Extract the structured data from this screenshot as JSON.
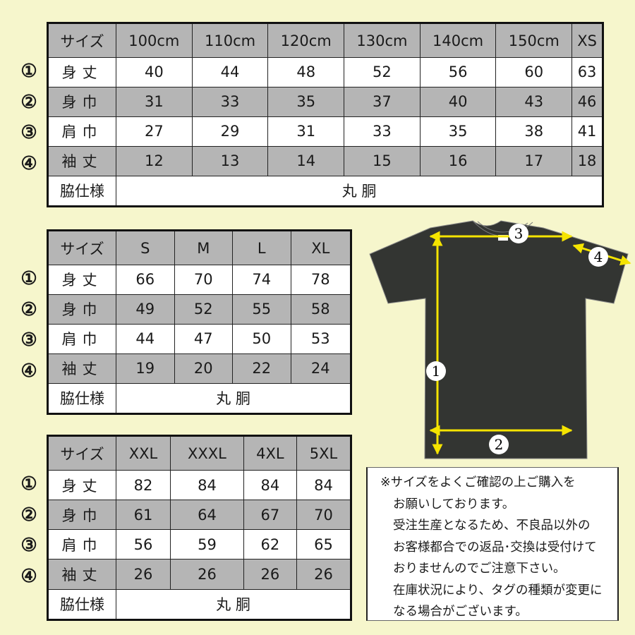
{
  "colors": {
    "background": "#f6f6cc",
    "row_gray": "#b5b5b5",
    "shirt": "#333532",
    "arrow": "#f5e400"
  },
  "tables": [
    {
      "id": "t1",
      "header": [
        "サイズ",
        "100cm",
        "110cm",
        "120cm",
        "130cm",
        "140cm",
        "150cm",
        "XS"
      ],
      "rows": [
        {
          "marker": "①",
          "label": "身丈",
          "values": [
            "40",
            "44",
            "48",
            "52",
            "56",
            "60",
            "63"
          ]
        },
        {
          "marker": "②",
          "label": "身巾",
          "values": [
            "31",
            "33",
            "35",
            "37",
            "40",
            "43",
            "46"
          ]
        },
        {
          "marker": "③",
          "label": "肩巾",
          "values": [
            "27",
            "29",
            "31",
            "33",
            "35",
            "38",
            "41"
          ]
        },
        {
          "marker": "④",
          "label": "袖丈",
          "values": [
            "12",
            "13",
            "14",
            "15",
            "16",
            "17",
            "18"
          ]
        }
      ],
      "side_label": "脇仕様",
      "side_value": "丸 胴"
    },
    {
      "id": "t2",
      "header": [
        "サイズ",
        "S",
        "M",
        "L",
        "XL"
      ],
      "rows": [
        {
          "marker": "①",
          "label": "身丈",
          "values": [
            "66",
            "70",
            "74",
            "78"
          ]
        },
        {
          "marker": "②",
          "label": "身巾",
          "values": [
            "49",
            "52",
            "55",
            "58"
          ]
        },
        {
          "marker": "③",
          "label": "肩巾",
          "values": [
            "44",
            "47",
            "50",
            "53"
          ]
        },
        {
          "marker": "④",
          "label": "袖丈",
          "values": [
            "19",
            "20",
            "22",
            "24"
          ]
        }
      ],
      "side_label": "脇仕様",
      "side_value": "丸 胴"
    },
    {
      "id": "t3",
      "header": [
        "サイズ",
        "XXL",
        "XXXL",
        "4XL",
        "5XL"
      ],
      "rows": [
        {
          "marker": "①",
          "label": "身丈",
          "values": [
            "82",
            "84",
            "84",
            "84"
          ]
        },
        {
          "marker": "②",
          "label": "身巾",
          "values": [
            "61",
            "64",
            "67",
            "70"
          ]
        },
        {
          "marker": "③",
          "label": "肩巾",
          "values": [
            "56",
            "59",
            "62",
            "65"
          ]
        },
        {
          "marker": "④",
          "label": "袖丈",
          "values": [
            "26",
            "26",
            "26",
            "26"
          ]
        }
      ],
      "side_label": "脇仕様",
      "side_value": "丸 胴"
    }
  ],
  "diagram": {
    "markers": [
      "1",
      "2",
      "3",
      "4"
    ]
  },
  "notes": [
    "※サイズをよくご確認の上ご購入を",
    "お願いしております。",
    "受注生産となるため、不良品以外の",
    "お客様都合での返品･交換は受付けて",
    "おりませんのでご注意下さい。",
    "在庫状況により、タグの種類が変更に",
    "なる場合がございます。"
  ]
}
